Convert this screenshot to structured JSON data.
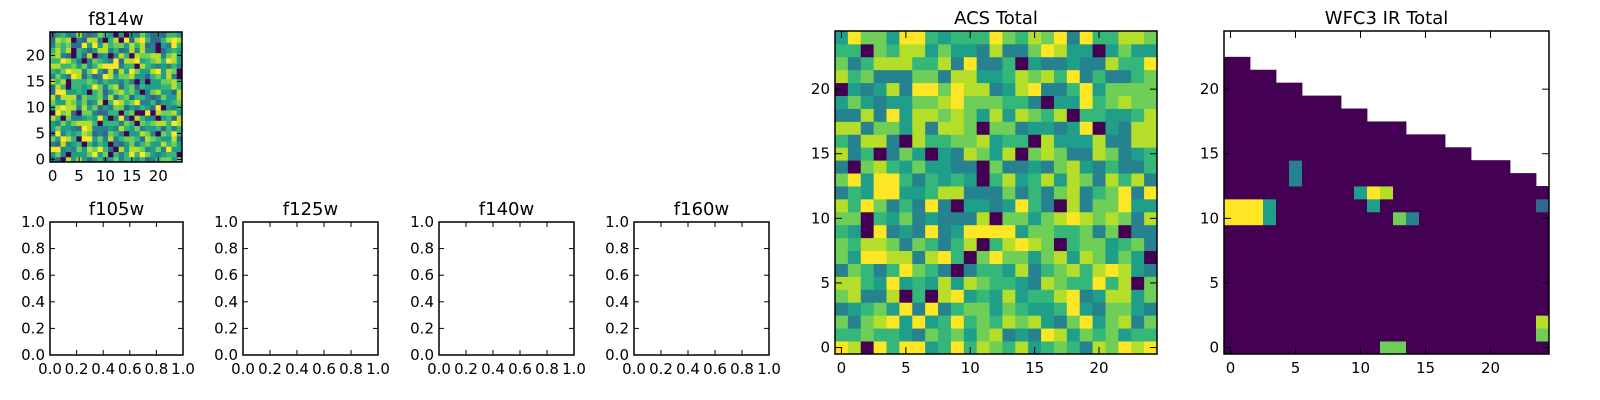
{
  "colormap": [
    "#440154",
    "#482878",
    "#3e4989",
    "#31688e",
    "#26828e",
    "#1f9e89",
    "#35b779",
    "#6ece58",
    "#b5de2b",
    "#fde725"
  ],
  "chart_data": [
    {
      "id": "f814w",
      "type": "heatmap",
      "title": "f814w",
      "grid": [
        25,
        25
      ],
      "seed": 814,
      "style": "noise",
      "mean": 0.62,
      "spread": 0.55,
      "xticks": [
        "0",
        "5",
        "10",
        "15",
        "20"
      ],
      "yticks": [
        "0",
        "5",
        "10",
        "15",
        "20"
      ],
      "tick_values": [
        0,
        5,
        10,
        15,
        20
      ]
    },
    {
      "id": "f105w",
      "type": "empty",
      "title": "f105w",
      "xticks": [
        "0.0",
        "0.2",
        "0.4",
        "0.6",
        "0.8",
        "1.0"
      ],
      "yticks": [
        "0.0",
        "0.2",
        "0.4",
        "0.6",
        "0.8",
        "1.0"
      ],
      "tick_values": [
        0,
        0.2,
        0.4,
        0.6,
        0.8,
        1.0
      ]
    },
    {
      "id": "f125w",
      "type": "empty",
      "title": "f125w",
      "xticks": [
        "0.0",
        "0.2",
        "0.4",
        "0.6",
        "0.8",
        "1.0"
      ],
      "yticks": [
        "0.0",
        "0.2",
        "0.4",
        "0.6",
        "0.8",
        "1.0"
      ],
      "tick_values": [
        0,
        0.2,
        0.4,
        0.6,
        0.8,
        1.0
      ]
    },
    {
      "id": "f140w",
      "type": "empty",
      "title": "f140w",
      "xticks": [
        "0.0",
        "0.2",
        "0.4",
        "0.6",
        "0.8",
        "1.0"
      ],
      "yticks": [
        "0.0",
        "0.2",
        "0.4",
        "0.6",
        "0.8",
        "1.0"
      ],
      "tick_values": [
        0,
        0.2,
        0.4,
        0.6,
        0.8,
        1.0
      ]
    },
    {
      "id": "f160w",
      "type": "empty",
      "title": "f160w",
      "xticks": [
        "0.0",
        "0.2",
        "0.4",
        "0.6",
        "0.8",
        "1.0"
      ],
      "yticks": [
        "0.0",
        "0.2",
        "0.4",
        "0.6",
        "0.8",
        "1.0"
      ],
      "tick_values": [
        0,
        0.2,
        0.4,
        0.6,
        0.8,
        1.0
      ]
    },
    {
      "id": "acs_total",
      "type": "heatmap",
      "title": "ACS Total",
      "grid": [
        25,
        25
      ],
      "seed": 1234,
      "style": "noise",
      "mean": 0.66,
      "spread": 0.5,
      "xticks": [
        "0",
        "5",
        "10",
        "15",
        "20"
      ],
      "yticks": [
        "0",
        "5",
        "10",
        "15",
        "20"
      ],
      "tick_values": [
        0,
        5,
        10,
        15,
        20
      ]
    },
    {
      "id": "wfc3_ir_total",
      "type": "heatmap",
      "title": "WFC3 IR Total",
      "grid": [
        25,
        25
      ],
      "seed": 4321,
      "style": "triangle",
      "mean": 0.06,
      "spread": 0.08,
      "staircase_top_row": [
        22,
        22,
        21,
        21,
        20,
        20,
        19,
        19,
        19,
        18,
        18,
        17,
        17,
        17,
        16,
        16,
        16,
        15,
        15,
        14,
        14,
        14,
        13,
        13,
        12
      ],
      "hotspots": [
        {
          "x": 0,
          "y": 10,
          "v": 0.95
        },
        {
          "x": 0,
          "y": 11,
          "v": 0.97
        },
        {
          "x": 1,
          "y": 10,
          "v": 0.98
        },
        {
          "x": 1,
          "y": 11,
          "v": 0.98
        },
        {
          "x": 2,
          "y": 10,
          "v": 0.96
        },
        {
          "x": 2,
          "y": 11,
          "v": 0.97
        },
        {
          "x": 3,
          "y": 10,
          "v": 0.55
        },
        {
          "x": 3,
          "y": 11,
          "v": 0.5
        },
        {
          "x": 5,
          "y": 13,
          "v": 0.45
        },
        {
          "x": 5,
          "y": 14,
          "v": 0.42
        },
        {
          "x": 10,
          "y": 12,
          "v": 0.5
        },
        {
          "x": 11,
          "y": 12,
          "v": 0.95
        },
        {
          "x": 12,
          "y": 12,
          "v": 0.85
        },
        {
          "x": 11,
          "y": 11,
          "v": 0.55
        },
        {
          "x": 13,
          "y": 10,
          "v": 0.78
        },
        {
          "x": 14,
          "y": 10,
          "v": 0.45
        },
        {
          "x": 12,
          "y": 0,
          "v": 0.75
        },
        {
          "x": 13,
          "y": 0,
          "v": 0.75
        },
        {
          "x": 24,
          "y": 1,
          "v": 0.7
        },
        {
          "x": 24,
          "y": 2,
          "v": 0.85
        },
        {
          "x": 24,
          "y": 11,
          "v": 0.35
        }
      ],
      "xticks": [
        "0",
        "5",
        "10",
        "15",
        "20"
      ],
      "yticks": [
        "0",
        "5",
        "10",
        "15",
        "20"
      ],
      "tick_values": [
        0,
        5,
        10,
        15,
        20
      ]
    }
  ]
}
